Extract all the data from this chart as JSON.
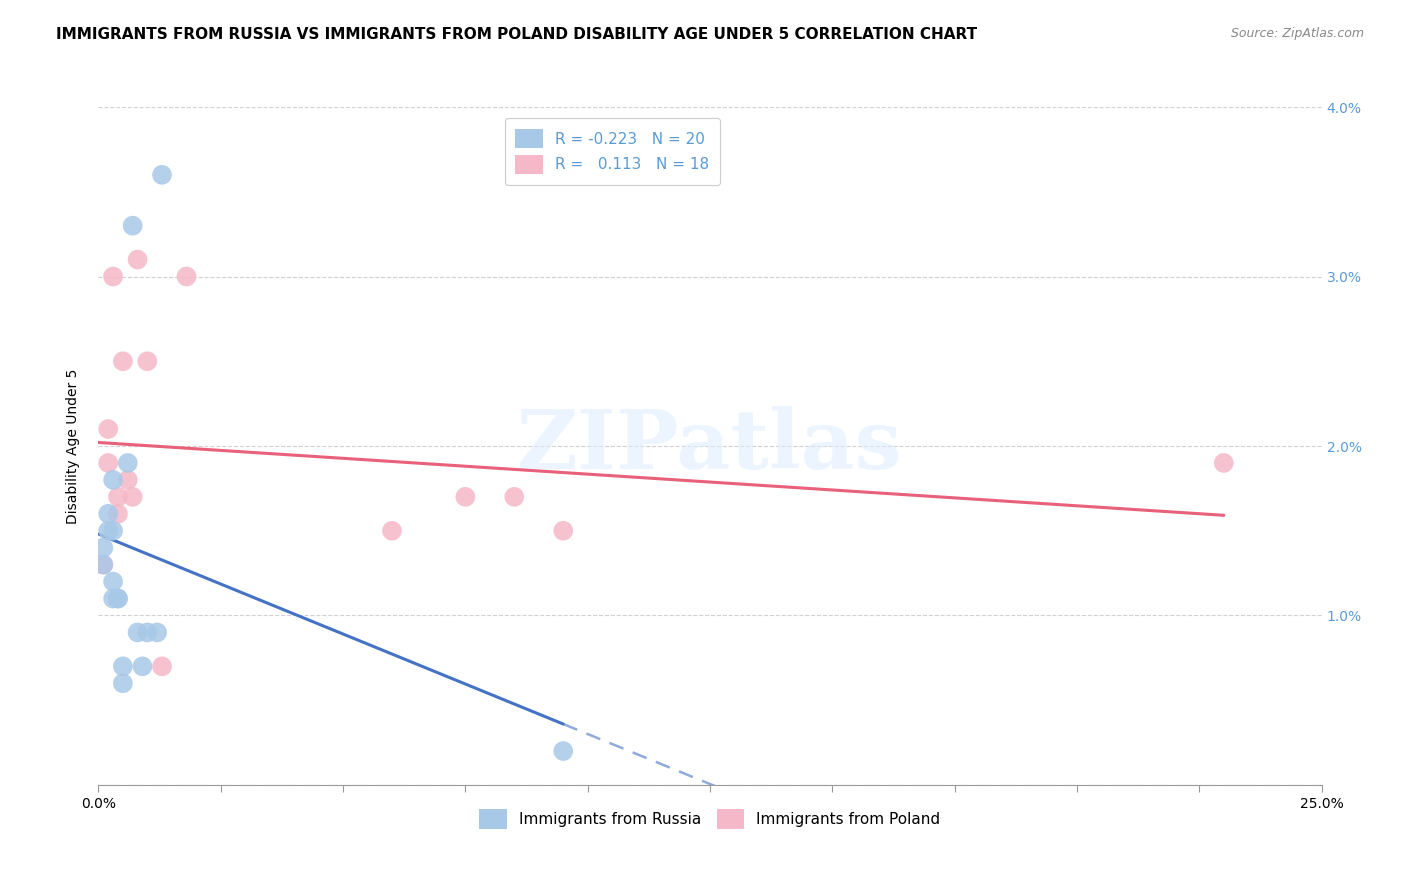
{
  "title": "IMMIGRANTS FROM RUSSIA VS IMMIGRANTS FROM POLAND DISABILITY AGE UNDER 5 CORRELATION CHART",
  "source": "Source: ZipAtlas.com",
  "ylabel": "Disability Age Under 5",
  "xlim": [
    0.0,
    0.25
  ],
  "ylim": [
    0.0,
    0.04
  ],
  "russia_R": -0.223,
  "russia_N": 20,
  "poland_R": 0.113,
  "poland_N": 18,
  "russia_color": "#a8c8e8",
  "poland_color": "#f5b8c8",
  "russia_line_color": "#4472C4",
  "poland_line_color": "#E8607A",
  "russia_scatter_x": [
    0.001,
    0.001,
    0.002,
    0.002,
    0.003,
    0.003,
    0.003,
    0.003,
    0.004,
    0.004,
    0.005,
    0.005,
    0.006,
    0.007,
    0.008,
    0.009,
    0.012,
    0.013,
    0.01,
    0.095
  ],
  "russia_scatter_y": [
    0.013,
    0.014,
    0.016,
    0.015,
    0.011,
    0.015,
    0.012,
    0.018,
    0.011,
    0.011,
    0.007,
    0.006,
    0.019,
    0.033,
    0.009,
    0.007,
    0.009,
    0.036,
    0.009,
    0.002
  ],
  "poland_scatter_x": [
    0.001,
    0.002,
    0.002,
    0.003,
    0.004,
    0.004,
    0.005,
    0.006,
    0.007,
    0.008,
    0.01,
    0.013,
    0.018,
    0.06,
    0.075,
    0.085,
    0.095,
    0.23
  ],
  "poland_scatter_y": [
    0.013,
    0.021,
    0.019,
    0.03,
    0.016,
    0.017,
    0.025,
    0.018,
    0.017,
    0.031,
    0.025,
    0.007,
    0.03,
    0.015,
    0.017,
    0.017,
    0.015,
    0.019
  ],
  "background_color": "#ffffff",
  "grid_color": "#cccccc",
  "watermark_text": "ZIPatlas",
  "legend_russia_label": "Immigrants from Russia",
  "legend_poland_label": "Immigrants from Poland",
  "title_fontsize": 11,
  "axis_label_fontsize": 10,
  "tick_label_fontsize": 10,
  "legend_fontsize": 11,
  "tick_color": "#5b9bd5",
  "russia_line_x0": 0.0,
  "russia_line_x_solid_end": 0.115,
  "russia_line_x_dashed_end": 0.25,
  "russia_line_y0": 0.0178,
  "russia_line_slope": -0.095,
  "poland_line_x0": 0.0,
  "poland_line_x_end": 0.25,
  "poland_line_y0": 0.0185,
  "poland_line_slope": 0.013
}
